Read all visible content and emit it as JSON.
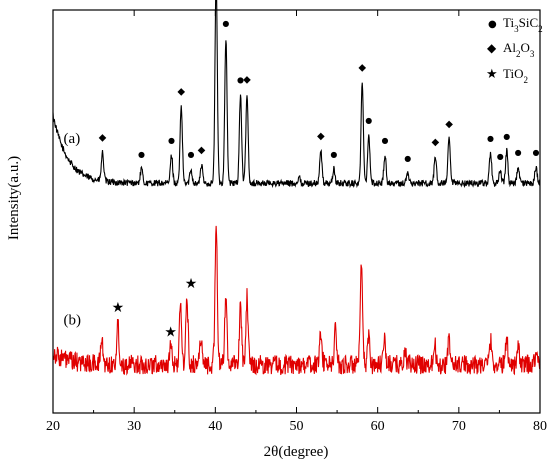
{
  "chart_data": {
    "type": "line",
    "xlabel": "2θ(degree)",
    "ylabel": "Intensity(a.u.)",
    "xlim": [
      20,
      80
    ],
    "xticks": [
      20,
      30,
      40,
      50,
      60,
      70,
      80
    ],
    "yticks_shown": false,
    "grid": false,
    "legend_position": "top-right",
    "legend": [
      {
        "symbol": "●",
        "icon": "circle-icon",
        "label_base": "Ti",
        "label_sub1": "3",
        "label_mid": "SiC",
        "label_sub2": "2"
      },
      {
        "symbol": "◆",
        "icon": "diamond-icon",
        "label_base": "Al",
        "label_sub1": "2",
        "label_mid": "O",
        "label_sub2": "3"
      },
      {
        "symbol": "★",
        "icon": "star-icon",
        "label_base": "TiO",
        "label_sub1": "2",
        "label_mid": "",
        "label_sub2": ""
      }
    ],
    "series": [
      {
        "label": "(a)",
        "color": "#000000",
        "baseline": 0.57,
        "low_angle_rise": 0.17,
        "noise": 0.008,
        "peaks": [
          {
            "x": 26.1,
            "h": 0.07
          },
          {
            "x": 30.9,
            "h": 0.035
          },
          {
            "x": 34.6,
            "h": 0.07
          },
          {
            "x": 35.8,
            "h": 0.19
          },
          {
            "x": 37.0,
            "h": 0.035
          },
          {
            "x": 38.3,
            "h": 0.045
          },
          {
            "x": 40.1,
            "h": 0.51
          },
          {
            "x": 41.3,
            "h": 0.36
          },
          {
            "x": 43.1,
            "h": 0.22
          },
          {
            "x": 43.9,
            "h": 0.22
          },
          {
            "x": 50.3,
            "h": 0.015
          },
          {
            "x": 53.0,
            "h": 0.08
          },
          {
            "x": 54.6,
            "h": 0.035
          },
          {
            "x": 58.1,
            "h": 0.25
          },
          {
            "x": 58.9,
            "h": 0.12
          },
          {
            "x": 60.9,
            "h": 0.07
          },
          {
            "x": 63.7,
            "h": 0.025
          },
          {
            "x": 67.1,
            "h": 0.065
          },
          {
            "x": 68.8,
            "h": 0.11
          },
          {
            "x": 73.9,
            "h": 0.075
          },
          {
            "x": 75.1,
            "h": 0.03
          },
          {
            "x": 75.9,
            "h": 0.08
          },
          {
            "x": 77.3,
            "h": 0.04
          },
          {
            "x": 79.5,
            "h": 0.04
          }
        ],
        "markers": [
          {
            "x": 26.1,
            "symbol": "◆"
          },
          {
            "x": 30.9,
            "symbol": "●"
          },
          {
            "x": 34.6,
            "symbol": "●"
          },
          {
            "x": 35.8,
            "symbol": "◆"
          },
          {
            "x": 37.0,
            "symbol": "●"
          },
          {
            "x": 38.3,
            "symbol": "◆"
          },
          {
            "x": 40.1,
            "symbol": "●"
          },
          {
            "x": 41.3,
            "symbol": "●"
          },
          {
            "x": 43.1,
            "symbol": "●"
          },
          {
            "x": 43.9,
            "symbol": "◆"
          },
          {
            "x": 53.0,
            "symbol": "◆"
          },
          {
            "x": 54.6,
            "symbol": "●"
          },
          {
            "x": 58.1,
            "symbol": "◆"
          },
          {
            "x": 58.9,
            "symbol": "●"
          },
          {
            "x": 60.9,
            "symbol": "●"
          },
          {
            "x": 63.7,
            "symbol": "●"
          },
          {
            "x": 67.1,
            "symbol": "◆"
          },
          {
            "x": 68.8,
            "symbol": "◆"
          },
          {
            "x": 73.9,
            "symbol": "●"
          },
          {
            "x": 75.1,
            "symbol": "●"
          },
          {
            "x": 75.9,
            "symbol": "●"
          },
          {
            "x": 77.3,
            "symbol": "●"
          },
          {
            "x": 79.5,
            "symbol": "●"
          }
        ]
      },
      {
        "label": "(b)",
        "color": "#e00000",
        "baseline": 0.12,
        "low_angle_rise": 0.03,
        "noise": 0.024,
        "peaks": [
          {
            "x": 26.0,
            "h": 0.06
          },
          {
            "x": 28.0,
            "h": 0.1
          },
          {
            "x": 34.5,
            "h": 0.04
          },
          {
            "x": 35.7,
            "h": 0.14
          },
          {
            "x": 36.5,
            "h": 0.16
          },
          {
            "x": 38.2,
            "h": 0.07
          },
          {
            "x": 40.1,
            "h": 0.35
          },
          {
            "x": 41.3,
            "h": 0.17
          },
          {
            "x": 43.1,
            "h": 0.14
          },
          {
            "x": 43.9,
            "h": 0.17
          },
          {
            "x": 53.0,
            "h": 0.08
          },
          {
            "x": 54.8,
            "h": 0.09
          },
          {
            "x": 58.0,
            "h": 0.24
          },
          {
            "x": 58.9,
            "h": 0.07
          },
          {
            "x": 60.8,
            "h": 0.07
          },
          {
            "x": 63.4,
            "h": 0.03
          },
          {
            "x": 67.0,
            "h": 0.06
          },
          {
            "x": 68.8,
            "h": 0.06
          },
          {
            "x": 73.9,
            "h": 0.06
          },
          {
            "x": 75.9,
            "h": 0.07
          },
          {
            "x": 77.3,
            "h": 0.04
          },
          {
            "x": 79.5,
            "h": 0.03
          }
        ],
        "markers": [
          {
            "x": 28.0,
            "symbol": "★"
          },
          {
            "x": 34.5,
            "symbol": "★"
          },
          {
            "x": 37.0,
            "symbol": "★"
          }
        ]
      }
    ]
  }
}
